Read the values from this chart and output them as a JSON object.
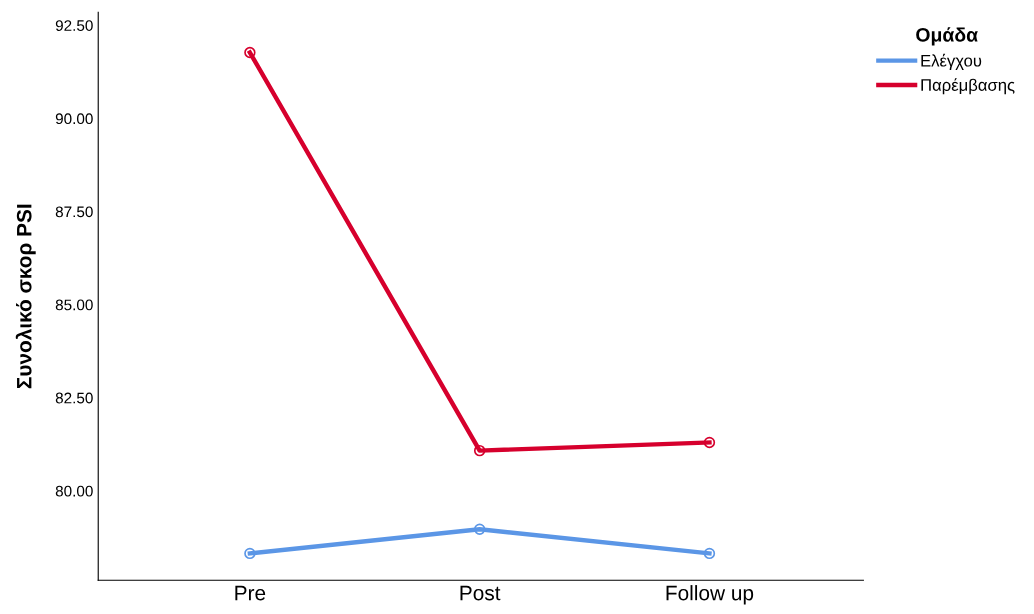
{
  "chart_data": {
    "type": "line",
    "ylabel": "Συνολικό σκορ PSI",
    "legend_title": "Ομάδα",
    "categories": [
      "Pre",
      "Post",
      "Follow up"
    ],
    "series": [
      {
        "name": "Ελέγχου",
        "color": "#5b96e6",
        "values": [
          78.32,
          78.97,
          78.32
        ]
      },
      {
        "name": "Παρέμβασης",
        "color": "#d6002d",
        "values": [
          91.77,
          81.08,
          81.3
        ]
      }
    ],
    "ylim": [
      77.6,
      92.85
    ],
    "yticks": [
      {
        "value": 80,
        "label": "80.00"
      },
      {
        "value": 82.5,
        "label": "82.50"
      },
      {
        "value": 85,
        "label": "85.00"
      },
      {
        "value": 87.5,
        "label": "87.50"
      },
      {
        "value": 90,
        "label": "90.00"
      },
      {
        "value": 92.5,
        "label": "92.50"
      }
    ],
    "grid": false,
    "legend": "top right",
    "marker": "circle",
    "line_style": "solid"
  }
}
